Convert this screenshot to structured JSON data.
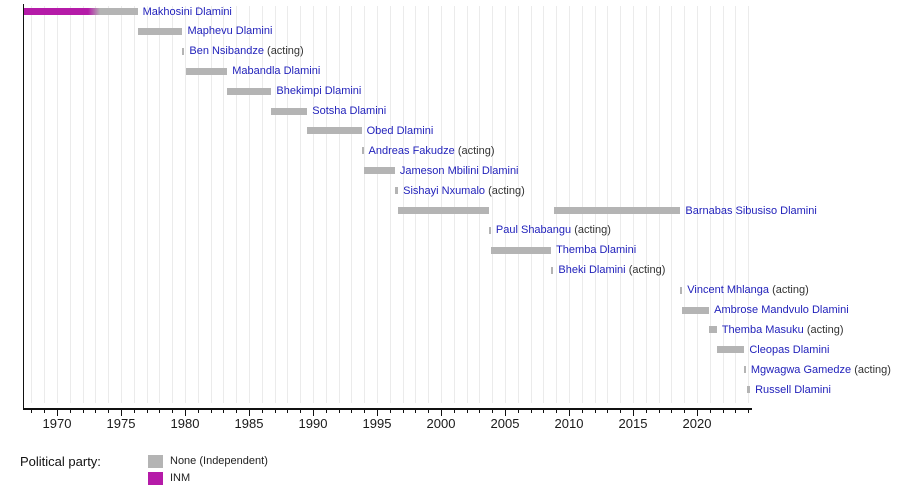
{
  "legend": {
    "label": "Political party:",
    "items": [
      {
        "label": "None (Independent)",
        "color": "#b4b4b4"
      },
      {
        "label": "INM",
        "color": "#b51ba8"
      }
    ]
  },
  "colors": {
    "link_blue": "#2222bb",
    "acting_text": "#333333",
    "axis": "#111111"
  },
  "chart_data": {
    "type": "bar",
    "subtype": "gantt-timeline",
    "title": "",
    "xlabel": "",
    "ylabel": "",
    "grid": true,
    "legend_position": "bottom-left",
    "axis": {
      "start": 1967.35,
      "end": 2024.2,
      "major_ticks": [
        1970,
        1975,
        1980,
        1985,
        1990,
        1995,
        2000,
        2005,
        2010,
        2015,
        2020
      ],
      "minor_tick_every": 1
    },
    "parties": {
      "None (Independent)": "#b4b4b4",
      "INM": "#b51ba8"
    },
    "acting_suffix": "(acting)",
    "entries": [
      {
        "name": "Makhosini Dlamini",
        "acting": false,
        "segments": [
          {
            "start": 1967.4,
            "end": 1973.35,
            "party": "INM"
          },
          {
            "start": 1973.35,
            "end": 1976.3,
            "party": "None (Independent)"
          }
        ]
      },
      {
        "name": "Maphevu Dlamini",
        "acting": false,
        "segments": [
          {
            "start": 1976.3,
            "end": 1979.8,
            "party": "None (Independent)"
          }
        ]
      },
      {
        "name": "Ben Nsibandze",
        "acting": true,
        "segments": [
          {
            "start": 1979.8,
            "end": 1979.95,
            "party": "None (Independent)"
          }
        ]
      },
      {
        "name": "Mabandla Dlamini",
        "acting": false,
        "segments": [
          {
            "start": 1980.05,
            "end": 1983.3,
            "party": "None (Independent)"
          }
        ]
      },
      {
        "name": "Bhekimpi Dlamini",
        "acting": false,
        "segments": [
          {
            "start": 1983.3,
            "end": 1986.75,
            "party": "None (Independent)"
          }
        ]
      },
      {
        "name": "Sotsha Dlamini",
        "acting": false,
        "segments": [
          {
            "start": 1986.75,
            "end": 1989.55,
            "party": "None (Independent)"
          }
        ]
      },
      {
        "name": "Obed Dlamini",
        "acting": false,
        "segments": [
          {
            "start": 1989.55,
            "end": 1993.8,
            "party": "None (Independent)"
          }
        ]
      },
      {
        "name": "Andreas Fakudze",
        "acting": true,
        "segments": [
          {
            "start": 1993.8,
            "end": 1993.95,
            "party": "None (Independent)"
          }
        ]
      },
      {
        "name": "Jameson Mbilini Dlamini",
        "acting": false,
        "segments": [
          {
            "start": 1994.0,
            "end": 1996.4,
            "party": "None (Independent)"
          }
        ]
      },
      {
        "name": "Sishayi Nxumalo",
        "acting": true,
        "segments": [
          {
            "start": 1996.4,
            "end": 1996.65,
            "party": "None (Independent)"
          }
        ]
      },
      {
        "name": "Barnabas Sibusiso Dlamini",
        "acting": false,
        "segments": [
          {
            "start": 1996.65,
            "end": 2003.75,
            "party": "None (Independent)"
          },
          {
            "start": 2008.8,
            "end": 2018.7,
            "party": "None (Independent)"
          }
        ]
      },
      {
        "name": "Paul Shabangu",
        "acting": true,
        "segments": [
          {
            "start": 2003.75,
            "end": 2003.9,
            "party": "None (Independent)"
          }
        ]
      },
      {
        "name": "Themba Dlamini",
        "acting": false,
        "segments": [
          {
            "start": 2003.9,
            "end": 2008.6,
            "party": "None (Independent)"
          }
        ]
      },
      {
        "name": "Bheki Dlamini",
        "acting": true,
        "segments": [
          {
            "start": 2008.62,
            "end": 2008.78,
            "party": "None (Independent)"
          }
        ]
      },
      {
        "name": "Vincent Mhlanga",
        "acting": true,
        "segments": [
          {
            "start": 2018.7,
            "end": 2018.85,
            "party": "None (Independent)"
          }
        ]
      },
      {
        "name": "Ambrose Mandvulo Dlamini",
        "acting": false,
        "segments": [
          {
            "start": 2018.85,
            "end": 2020.95,
            "party": "None (Independent)"
          }
        ]
      },
      {
        "name": "Themba Masuku",
        "acting": true,
        "segments": [
          {
            "start": 2020.95,
            "end": 2021.55,
            "party": "None (Independent)"
          }
        ]
      },
      {
        "name": "Cleopas Dlamini",
        "acting": false,
        "segments": [
          {
            "start": 2021.6,
            "end": 2023.7,
            "party": "None (Independent)"
          }
        ]
      },
      {
        "name": "Mgwagwa Gamedze",
        "acting": true,
        "segments": [
          {
            "start": 2023.7,
            "end": 2023.82,
            "party": "None (Independent)"
          }
        ]
      },
      {
        "name": "Russell Dlamini",
        "acting": false,
        "segments": [
          {
            "start": 2023.88,
            "end": 2024.15,
            "party": "None (Independent)"
          }
        ]
      }
    ]
  }
}
